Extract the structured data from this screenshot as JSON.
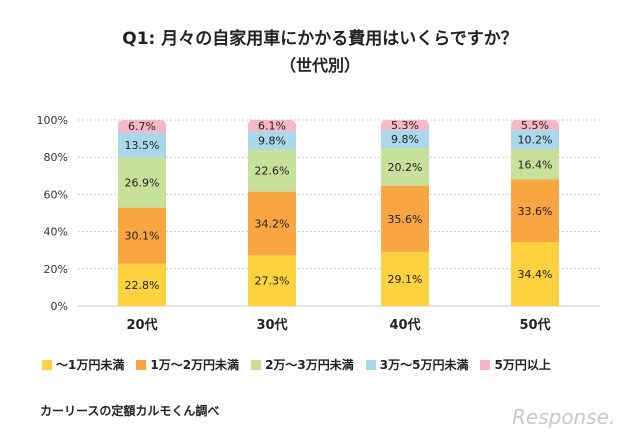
{
  "chart_data": {
    "type": "bar",
    "stacked": true,
    "title": "Q1: 月々の自家用車にかかる費用はいくらですか？",
    "subtitle": "（世代別）",
    "categories": [
      "20代",
      "30代",
      "40代",
      "50代"
    ],
    "y_ticks": [
      "0%",
      "20%",
      "40%",
      "60%",
      "80%",
      "100%"
    ],
    "ylim": [
      0,
      100
    ],
    "series": [
      {
        "name": "～1万円未満",
        "color": "#fdd23f",
        "values": [
          22.8,
          27.3,
          29.1,
          34.4
        ],
        "labels": [
          "22.8%",
          "27.3%",
          "29.1%",
          "34.4%"
        ]
      },
      {
        "name": "1万～2万円未満",
        "color": "#f9a541",
        "values": [
          30.1,
          34.2,
          35.6,
          33.6
        ],
        "labels": [
          "30.1%",
          "34.2%",
          "35.6%",
          "33.6%"
        ]
      },
      {
        "name": "2万～3万円未満",
        "color": "#c7e09a",
        "values": [
          26.9,
          22.6,
          20.2,
          16.4
        ],
        "labels": [
          "26.9%",
          "22.6%",
          "20.2%",
          "16.4%"
        ]
      },
      {
        "name": "3万～5万円未満",
        "color": "#aad8ea",
        "values": [
          13.5,
          9.8,
          9.8,
          10.2
        ],
        "labels": [
          "13.5%",
          "9.8%",
          "9.8%",
          "10.2%"
        ]
      },
      {
        "name": "5万円以上",
        "color": "#f6b7c8",
        "values": [
          6.7,
          6.1,
          5.3,
          5.5
        ],
        "labels": [
          "6.7%",
          "6.1%",
          "5.3%",
          "5.5%"
        ]
      }
    ]
  },
  "source": "カーリースの定額カルモくん調べ",
  "watermark": "Response."
}
